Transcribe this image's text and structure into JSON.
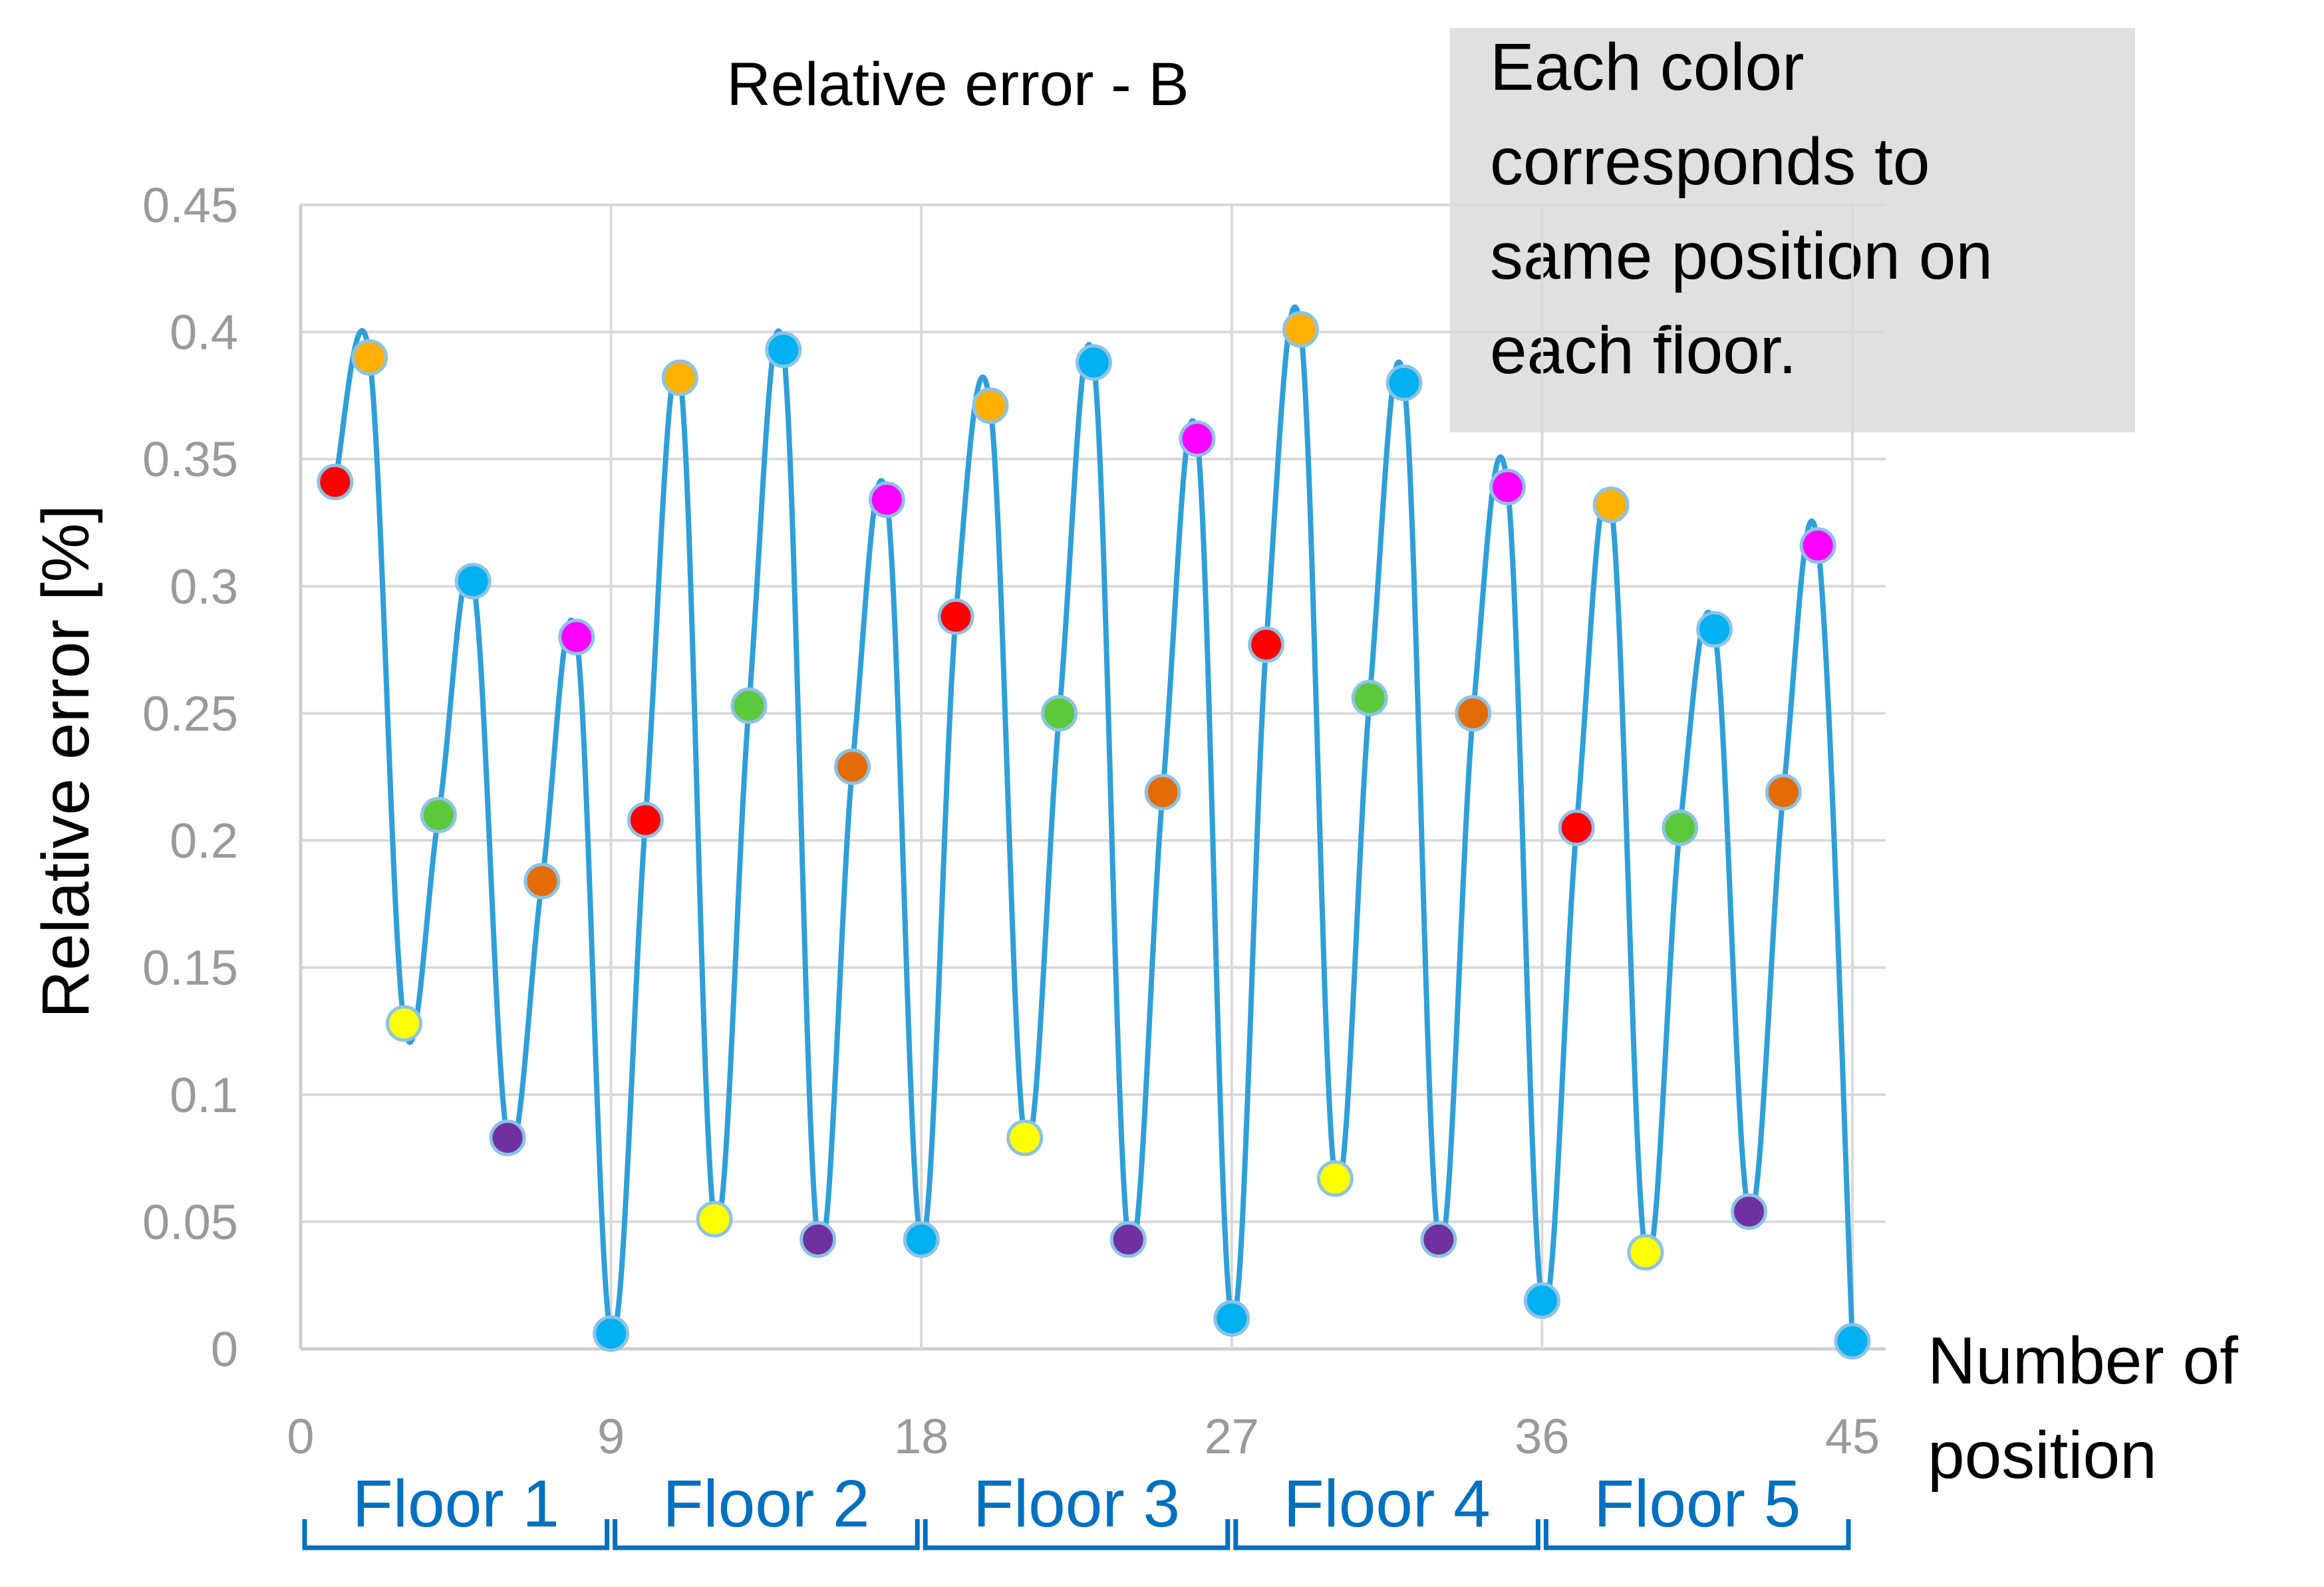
{
  "chart_data": {
    "type": "line",
    "title": "Relative error - B",
    "xlabel_lines": [
      "Number of",
      "position"
    ],
    "ylabel": "Relative error [%]",
    "xlim": [
      0,
      45
    ],
    "ylim": [
      0,
      0.45
    ],
    "x_ticks": [
      "0",
      "9",
      "18",
      "27",
      "36",
      "45"
    ],
    "y_ticks": [
      "0",
      "0.05",
      "0.1",
      "0.15",
      "0.2",
      "0.25",
      "0.3",
      "0.35",
      "0.4",
      "0.45"
    ],
    "grid": true,
    "line_color": "#2f9fd8",
    "x": [
      1,
      2,
      3,
      4,
      5,
      6,
      7,
      8,
      9,
      10,
      11,
      12,
      13,
      14,
      15,
      16,
      17,
      18,
      19,
      20,
      21,
      22,
      23,
      24,
      25,
      26,
      27,
      28,
      29,
      30,
      31,
      32,
      33,
      34,
      35,
      36,
      37,
      38,
      39,
      40,
      41,
      42,
      43,
      44,
      45
    ],
    "values": [
      0.341,
      0.39,
      0.128,
      0.21,
      0.302,
      0.083,
      0.184,
      0.28,
      0.006,
      0.208,
      0.382,
      0.051,
      0.253,
      0.393,
      0.043,
      0.229,
      0.334,
      0.043,
      0.288,
      0.371,
      0.083,
      0.25,
      0.388,
      0.043,
      0.219,
      0.358,
      0.012,
      0.277,
      0.401,
      0.067,
      0.256,
      0.38,
      0.043,
      0.25,
      0.339,
      0.019,
      0.205,
      0.332,
      0.038,
      0.205,
      0.283,
      0.054,
      0.219,
      0.316,
      0.003
    ],
    "position_colors": [
      "#ff0000",
      "#ffb000",
      "#ffff00",
      "#5cc93c",
      "#00b0f0",
      "#7030a0",
      "#e36c09",
      "#ff00ff",
      "#00b0f0"
    ],
    "floor_groups": [
      "Floor 1",
      "Floor 2",
      "Floor 3",
      "Floor 4",
      "Floor 5"
    ],
    "floor_color": "#0070c0",
    "annotation_lines": [
      "Each color",
      "corresponds to",
      "same position on",
      "each floor."
    ]
  }
}
